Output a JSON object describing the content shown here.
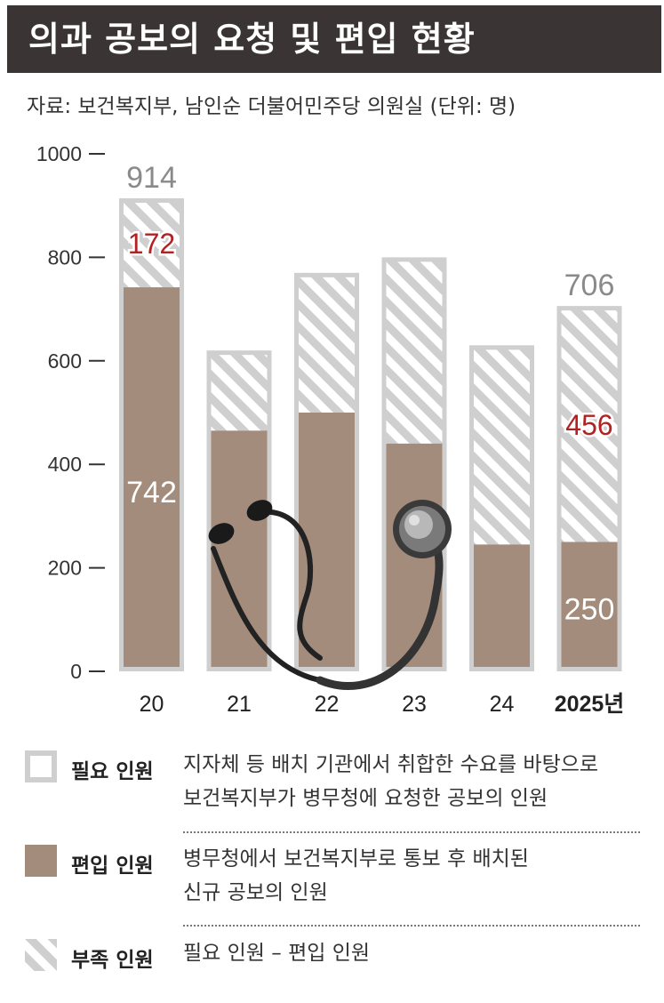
{
  "title": "의과 공보의 요청 및 편입 현황",
  "source": "자료: 보건복지부, 남인순 더불어민주당 의원실 (단위: 명)",
  "colors": {
    "required_frame": "#cfcfcf",
    "enrolled": "#a38c7c",
    "shortage_stripe": "#cfcfcf",
    "highlight_red": "#b22222",
    "total_gray": "#8a8a8a"
  },
  "chart_data": {
    "type": "bar",
    "stacked": true,
    "categories": [
      "20",
      "21",
      "22",
      "23",
      "24",
      "2025년"
    ],
    "series": [
      {
        "name": "편입 인원",
        "values": [
          742,
          465,
          500,
          440,
          245,
          250
        ]
      },
      {
        "name": "부족 인원",
        "values": [
          172,
          155,
          270,
          360,
          385,
          456
        ]
      }
    ],
    "totals": [
      914,
      620,
      770,
      800,
      630,
      706
    ],
    "yticks": [
      0,
      200,
      400,
      600,
      800,
      1000
    ],
    "ylim": [
      0,
      1000
    ],
    "labels": {
      "enrolled": {
        "0": "742",
        "5": "250"
      },
      "shortage": {
        "0": "172",
        "5": "456"
      },
      "totals": {
        "0": "914",
        "5": "706"
      }
    }
  },
  "legend": [
    {
      "label": "필요 인원",
      "desc": [
        "지자체 등 배치 기관에서 취합한 수요를 바탕으로",
        "보건복지부가 병무청에 요청한 공보의 인원"
      ]
    },
    {
      "label": "편입 인원",
      "desc": [
        "병무청에서 보건복지부로 통보 후 배치된",
        "신규 공보의 인원"
      ]
    },
    {
      "label": "부족 인원",
      "desc": [
        "필요 인원 – 편입 인원"
      ]
    }
  ]
}
